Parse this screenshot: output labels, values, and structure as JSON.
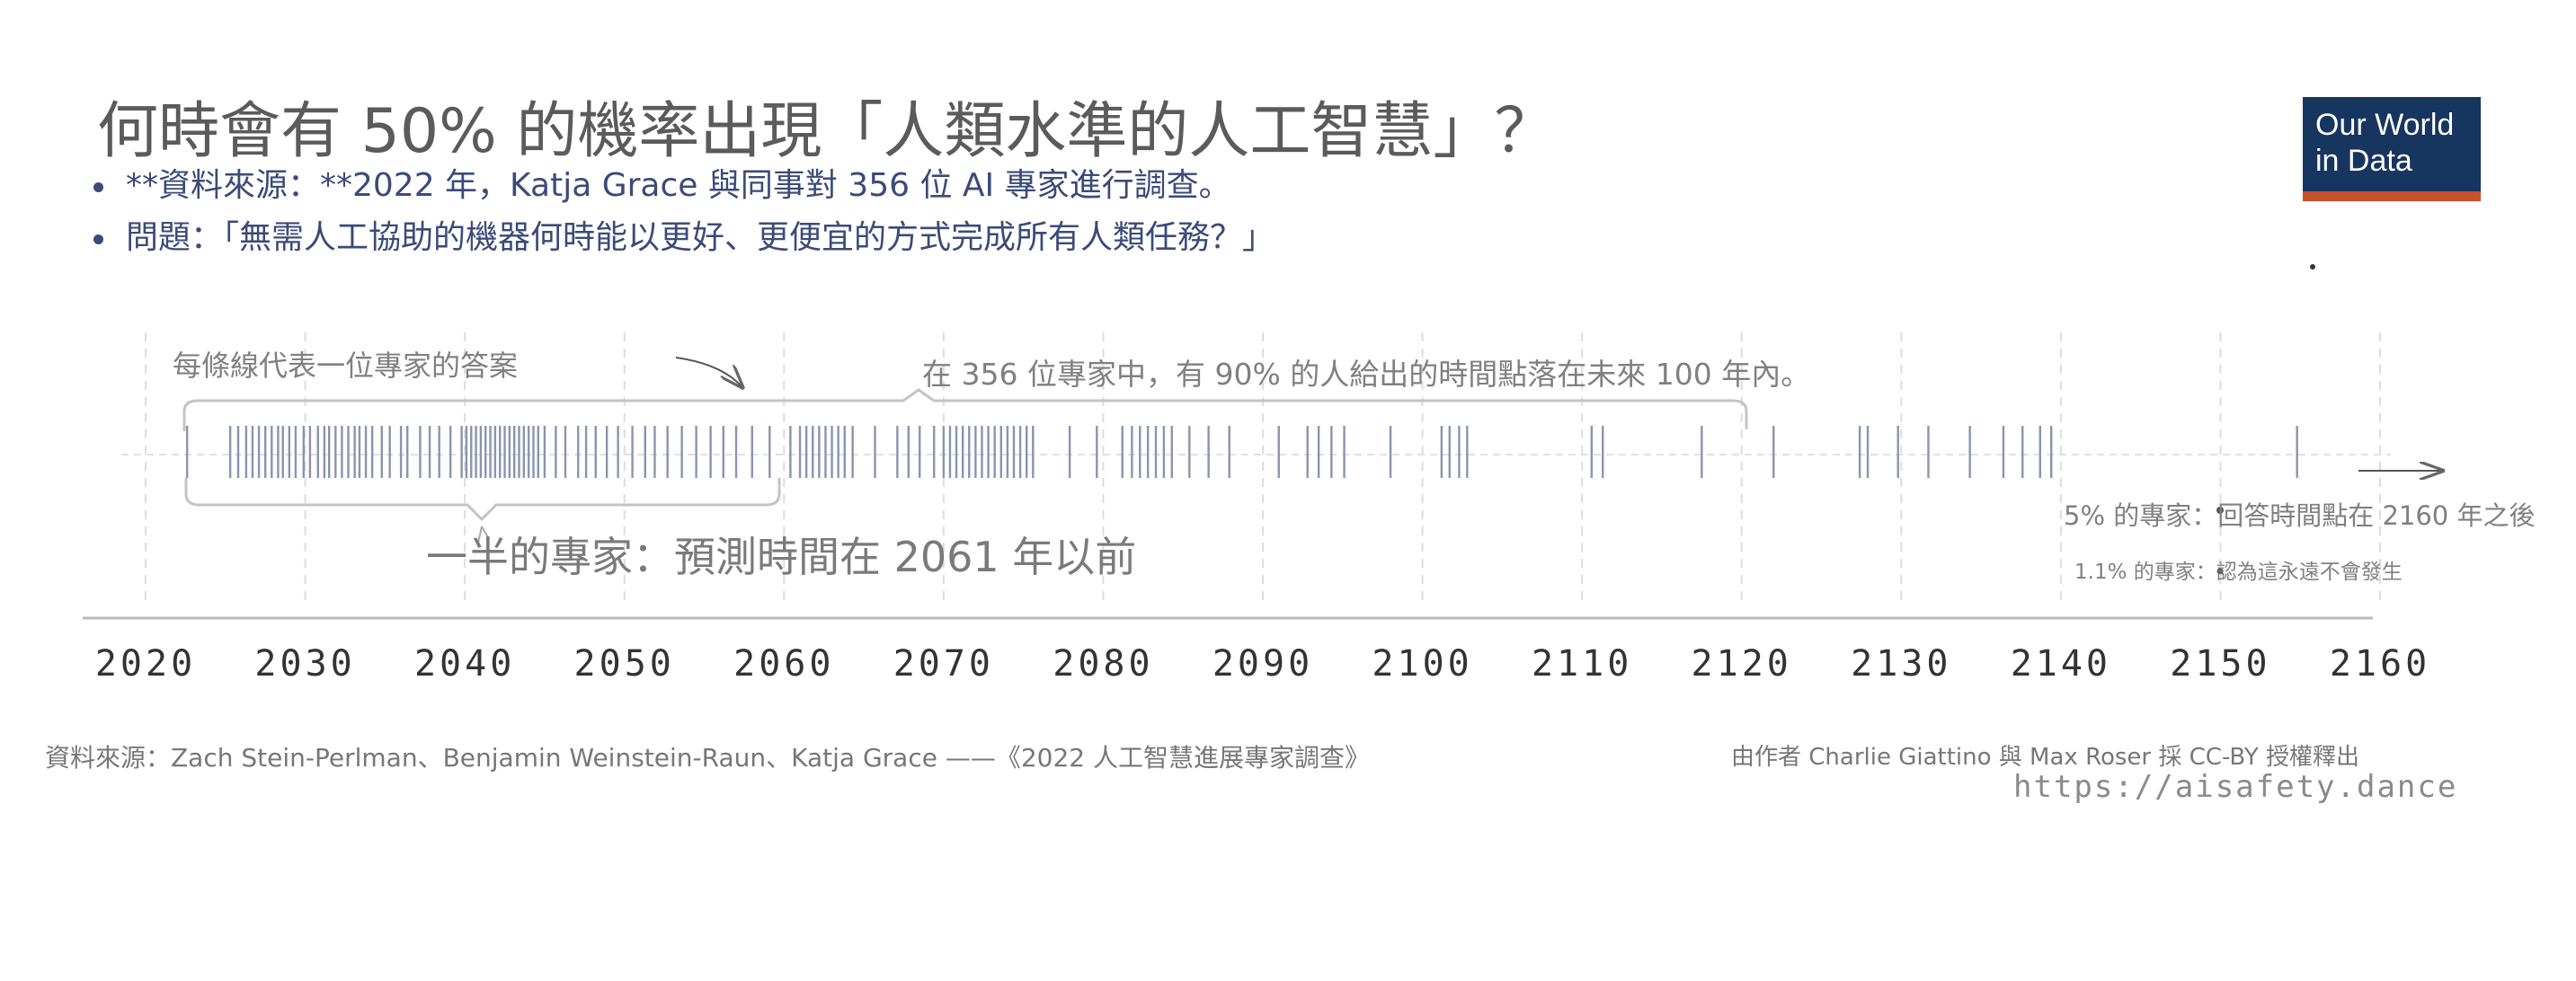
{
  "title": "何時會有 50% 的機率出現「人類水準的人工智慧」？",
  "bullets": [
    "**資料來源：**2022 年，Katja Grace 與同事對 356 位 AI 專家進行調查。",
    "問題：「無需人工協助的機器何時能以更好、更便宜的方式完成所有人類任務？」"
  ],
  "logo": {
    "line1": "Our World",
    "line2": "in Data"
  },
  "chart_data": {
    "type": "scatter",
    "title": "何時會有 50% 的機率出現「人類水準的人工智慧」？",
    "xlim": [
      2016,
      2162
    ],
    "x_ticks": [
      "2020",
      "2030",
      "2040",
      "2050",
      "2060",
      "2070",
      "2080",
      "2090",
      "2100",
      "2110",
      "2120",
      "2130",
      "2140",
      "2150",
      "2160"
    ],
    "x_tick_values": [
      2020,
      2030,
      2040,
      2050,
      2060,
      2070,
      2080,
      2090,
      2100,
      2110,
      2120,
      2130,
      2140,
      2150,
      2160
    ],
    "grid": true,
    "answers": [
      2022.6,
      2025.3,
      2025.8,
      2026.3,
      2026.7,
      2027.1,
      2027.5,
      2027.9,
      2028.3,
      2028.6,
      2029.0,
      2029.4,
      2029.9,
      2030.3,
      2030.8,
      2031.2,
      2031.5,
      2031.9,
      2032.3,
      2032.7,
      2033.1,
      2033.4,
      2033.8,
      2034.2,
      2034.8,
      2035.3,
      2036.0,
      2036.4,
      2037.2,
      2037.8,
      2038.4,
      2039.1,
      2039.8,
      2040.1,
      2040.4,
      2040.7,
      2041.0,
      2041.3,
      2041.6,
      2041.9,
      2042.2,
      2042.5,
      2042.8,
      2043.1,
      2043.4,
      2043.7,
      2044.0,
      2044.3,
      2044.6,
      2045.0,
      2045.7,
      2046.3,
      2047.1,
      2047.6,
      2048.2,
      2048.9,
      2049.6,
      2050.5,
      2051.3,
      2051.9,
      2052.7,
      2053.6,
      2054.5,
      2055.4,
      2056.2,
      2057.0,
      2058.0,
      2059.1,
      2060.4,
      2061.0,
      2061.4,
      2061.8,
      2062.2,
      2062.6,
      2063.0,
      2063.4,
      2063.8,
      2064.3,
      2065.7,
      2067.1,
      2067.8,
      2068.5,
      2069.4,
      2070.0,
      2070.4,
      2070.8,
      2071.2,
      2071.6,
      2072.0,
      2072.4,
      2072.8,
      2073.2,
      2073.6,
      2074.0,
      2074.4,
      2074.8,
      2075.2,
      2075.6,
      2077.9,
      2079.6,
      2081.2,
      2081.8,
      2082.3,
      2082.8,
      2083.3,
      2083.8,
      2084.3,
      2085.4,
      2086.6,
      2087.9,
      2091.0,
      2092.8,
      2093.5,
      2094.3,
      2095.1,
      2098.0,
      2101.2,
      2101.7,
      2102.3,
      2102.8,
      2110.6,
      2111.3,
      2117.5,
      2122.0,
      2127.4,
      2127.9,
      2129.8,
      2131.7,
      2134.3,
      2136.4,
      2137.6,
      2138.7,
      2139.4,
      2154.8
    ],
    "annotations": {
      "each_line": "每條線代表一位專家的答案",
      "ninety_pct": "在 356 位專家中，有 90% 的人給出的時間點落在未來 100 年內。",
      "half": "一半的專家：預測時間在 2061 年以前",
      "five_pct": "5% 的專家：回答時間點在 2160 年之後",
      "never": "1.1% 的專家：認為這永遠不會發生"
    },
    "colors": {
      "lines": "#8a94ac",
      "axis": "#bbbbbb",
      "grid": "#dddddd",
      "annotation": "#808080"
    }
  },
  "footer": {
    "source": "資料來源：Zach Stein-Perlman、Benjamin Weinstein-Raun、Katja Grace ——《2022 人工智慧進展專家調查》",
    "license": "由作者 Charlie Giattino 與 Max Roser 採 CC-BY 授權釋出",
    "url": "https://aisafety.dance"
  }
}
